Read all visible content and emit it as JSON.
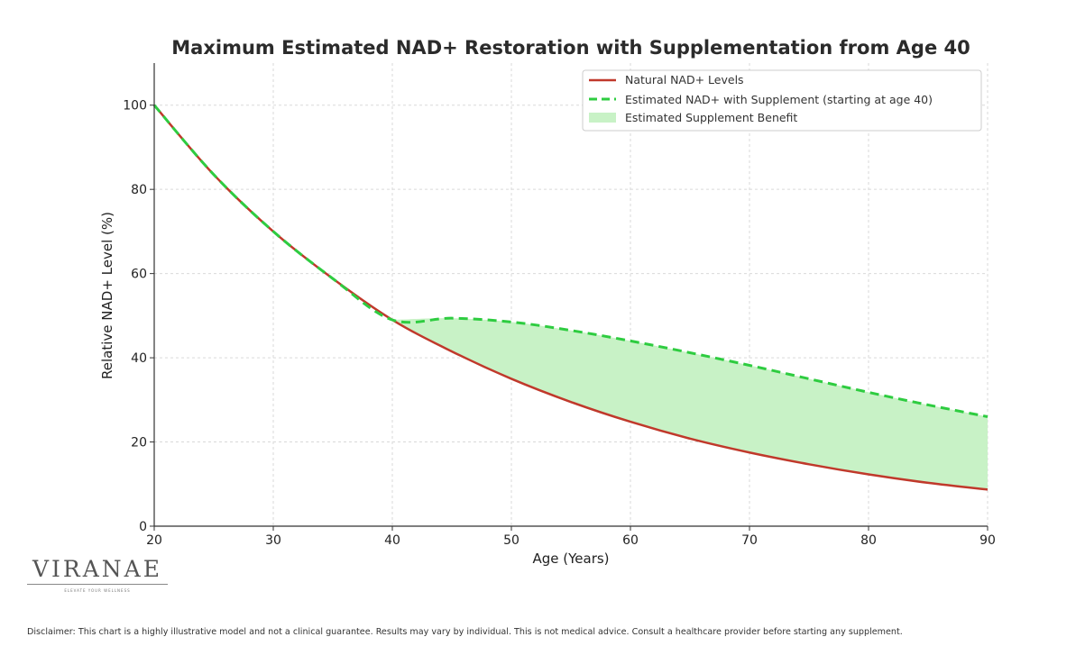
{
  "chart_data": {
    "type": "line",
    "title": "Maximum Estimated NAD+ Restoration with Supplementation from Age 40",
    "xlabel": "Age (Years)",
    "ylabel": "Relative NAD+ Level (%)",
    "xlim": [
      20,
      90
    ],
    "ylim": [
      0,
      110
    ],
    "x_ticks": [
      "20",
      "30",
      "40",
      "50",
      "60",
      "70",
      "80",
      "90"
    ],
    "y_ticks": [
      "0",
      "20",
      "40",
      "60",
      "80",
      "100"
    ],
    "grid": true,
    "legend_position": "top-right",
    "x": [
      20,
      25,
      30,
      35,
      40,
      45,
      50,
      55,
      60,
      65,
      70,
      75,
      80,
      85,
      90
    ],
    "series": [
      {
        "name": "Natural NAD+ Levels",
        "style": "solid",
        "color": "#c0392b",
        "values": [
          100,
          83.5,
          70.0,
          58.8,
          49.0,
          41.5,
          35.0,
          29.5,
          24.8,
          20.8,
          17.5,
          14.7,
          12.3,
          10.3,
          8.7
        ]
      },
      {
        "name": "Estimated NAD+ with Supplement (starting at age 40)",
        "style": "dashed",
        "color": "#2ecc40",
        "values": [
          100,
          83.5,
          70.0,
          58.8,
          49.0,
          49.4,
          48.5,
          46.5,
          44.0,
          41.2,
          38.2,
          35.0,
          31.8,
          28.8,
          26.0
        ]
      }
    ],
    "fill": {
      "name": "Estimated Supplement Benefit",
      "between": [
        "Natural NAD+ Levels",
        "Estimated NAD+ with Supplement (starting at age 40)"
      ],
      "from_x": 40,
      "color": "#c8f2c6"
    }
  },
  "branding": {
    "logo_text": "VIRANAE",
    "tagline": "ELEVATE YOUR WELLNESS"
  },
  "disclaimer": "Disclaimer: This chart is a highly illustrative model and not a clinical guarantee. Results may vary by individual. This is not medical advice. Consult a healthcare provider before starting any supplement."
}
